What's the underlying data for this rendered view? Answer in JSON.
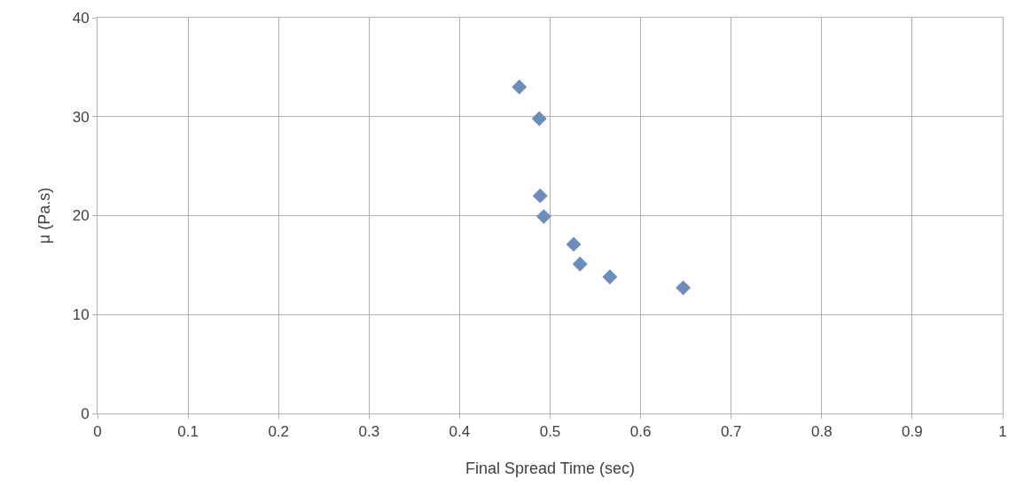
{
  "chart_data": {
    "type": "scatter",
    "xlabel": "Final Spread Time (sec)",
    "ylabel": "μ (Pa.s)",
    "x": [
      0.466,
      0.488,
      0.489,
      0.493,
      0.526,
      0.533,
      0.566,
      0.647
    ],
    "values": [
      33.0,
      29.8,
      22.0,
      19.9,
      17.1,
      15.1,
      13.8,
      12.7
    ],
    "color": "#6b8cbf",
    "marker": "diamond",
    "xlim": [
      0,
      1
    ],
    "xticks": [
      0,
      0.1,
      0.2,
      0.3,
      0.4,
      0.5,
      0.6,
      0.7,
      0.8,
      0.9,
      1
    ],
    "ylim": [
      0,
      40
    ],
    "yticks": [
      0,
      10,
      20,
      30,
      40
    ],
    "grid": true,
    "legend": false
  }
}
